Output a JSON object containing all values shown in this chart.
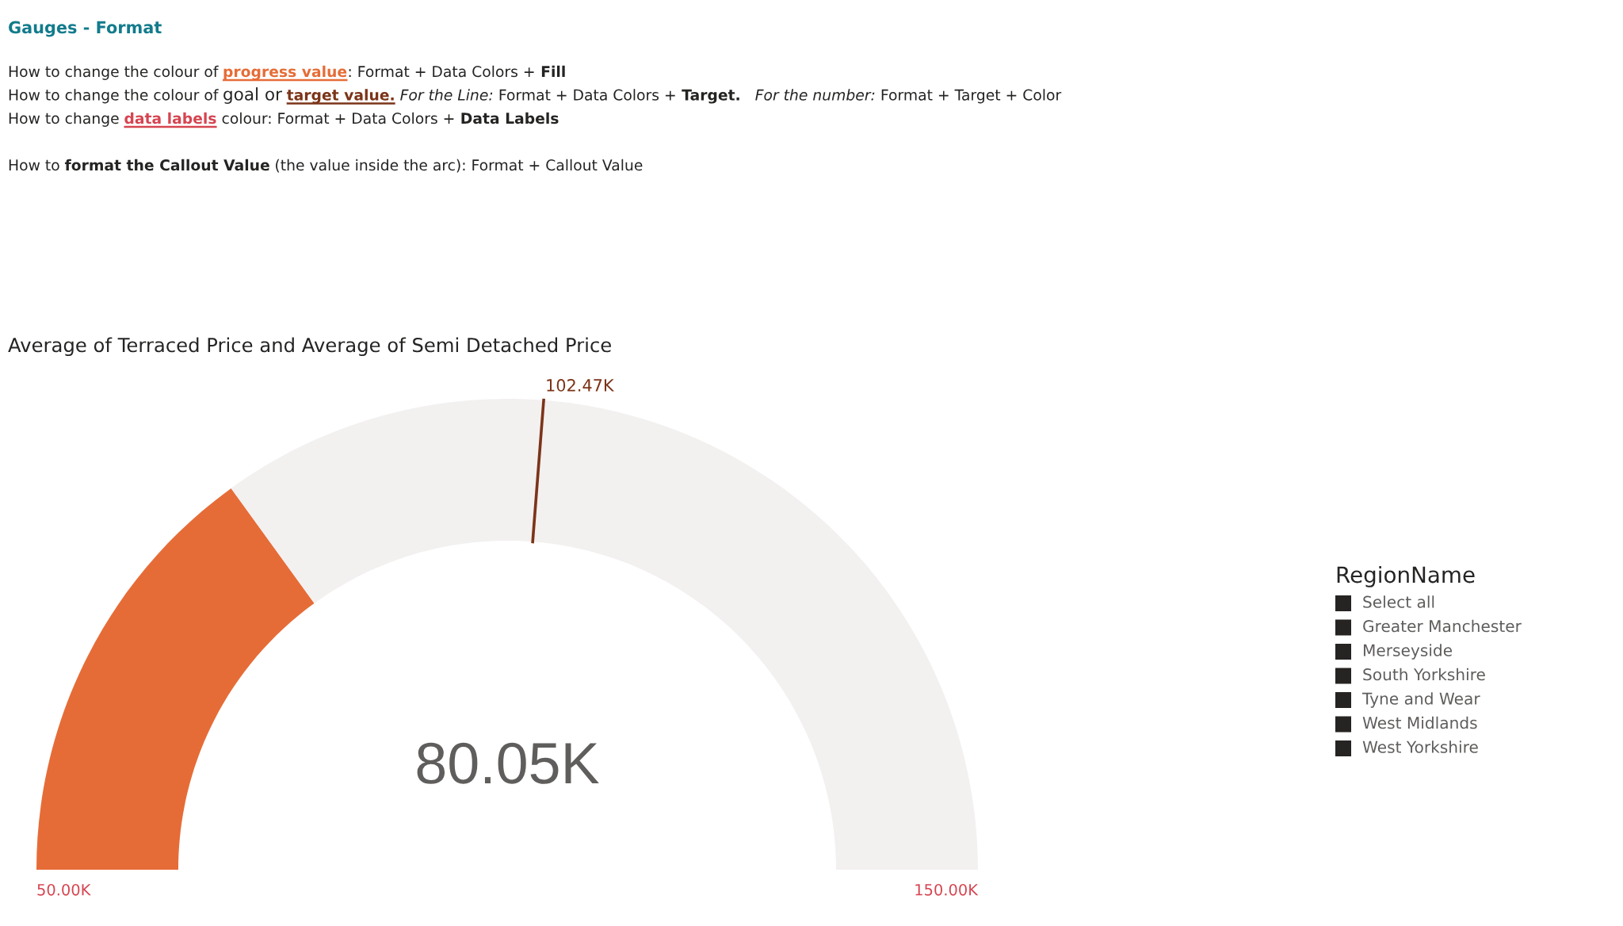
{
  "chart_data": [
    {
      "type": "other",
      "title": "Gauges - Format",
      "annotations": [
        "How to change the colour of",
        "progress value",
        ": Format + Data Colors +",
        "Fill",
        "How to change the colour of",
        "goal or",
        "target value.",
        "For the Line:",
        "Format + Data Colors +",
        "Target.",
        "For the number:",
        "Format + Target + Color",
        "How to change",
        "data labels",
        "colour: Format + Data Colors +",
        "Data Labels",
        "How to",
        "format the Callout Value",
        "(the value inside the arc): Format + Callout Value"
      ]
    },
    {
      "type": "donut",
      "title": "Average of Terraced Price and Average of Semi Detached Price",
      "categories": [
        null,
        null,
        null
      ],
      "values": [
        30.05,
        22.42,
        47.53
      ],
      "colors": [
        "#e66c37",
        "#f3f0f0",
        "#f3f0f0"
      ],
      "annotations": [
        "50.00K",
        "150.00K",
        "80.05K",
        "102.47K"
      ]
    },
    {
      "type": "other",
      "title": "RegionName",
      "annotations": [
        "Select all",
        "Greater Manchester",
        "Merseyside",
        "South Yorkshire",
        "Tyne and Wear",
        "West Midlands",
        "West Yorkshire"
      ],
      "color": "#252423"
    }
  ]
}
